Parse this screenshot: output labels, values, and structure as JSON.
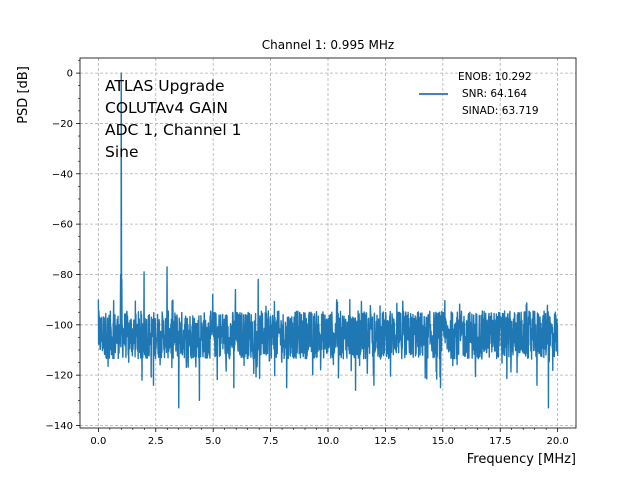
{
  "chart_data": {
    "type": "line",
    "title": "Channel 1: 0.995 MHz",
    "xlabel": "Frequency [MHz]",
    "ylabel": "PSD [dB]",
    "xlim": [
      -0.8,
      20.8
    ],
    "ylim": [
      -141,
      6
    ],
    "x_ticks": [
      0.0,
      2.5,
      5.0,
      7.5,
      10.0,
      12.5,
      15.0,
      17.5,
      20.0
    ],
    "x_tick_labels": [
      "0.0",
      "2.5",
      "5.0",
      "7.5",
      "10.0",
      "12.5",
      "15.0",
      "17.5",
      "20.0"
    ],
    "y_ticks": [
      0,
      -20,
      -40,
      -60,
      -80,
      -100,
      -120,
      -140
    ],
    "y_tick_labels": [
      "0",
      "−20",
      "−40",
      "−60",
      "−80",
      "−100",
      "−120",
      "−140"
    ],
    "grid": true,
    "legend_position": "top-right",
    "color": "#1f77b4",
    "annotation_lines": [
      "ATLAS Upgrade",
      "COLUTAv4 GAIN",
      "ADC 1, Channel 1",
      "Sine"
    ],
    "series": [
      {
        "legend_lines": [
          "ENOB: 10.292",
          "SNR: 64.164",
          "SINAD: 63.719"
        ],
        "noise_floor_db": -104,
        "noise_band_db": [
          -112,
          -93
        ],
        "min_db": -133,
        "start_db": -100,
        "spikes": [
          {
            "x": 0.0,
            "y": -90
          },
          {
            "x": 0.995,
            "y": 0
          },
          {
            "x": 0.97,
            "y": -80
          },
          {
            "x": 1.02,
            "y": -82
          },
          {
            "x": 1.99,
            "y": -79
          },
          {
            "x": 2.99,
            "y": -77
          },
          {
            "x": 4.98,
            "y": -88
          },
          {
            "x": 5.97,
            "y": -86
          },
          {
            "x": 6.96,
            "y": -82
          },
          {
            "x": 10.95,
            "y": -90
          },
          {
            "x": 19.9,
            "y": -95
          }
        ],
        "dips": [
          {
            "x": 1.9,
            "y": -122
          },
          {
            "x": 2.4,
            "y": -124
          },
          {
            "x": 3.5,
            "y": -133
          },
          {
            "x": 4.4,
            "y": -130
          },
          {
            "x": 5.9,
            "y": -125
          },
          {
            "x": 8.2,
            "y": -125
          },
          {
            "x": 11.2,
            "y": -126
          },
          {
            "x": 12.0,
            "y": -124
          },
          {
            "x": 14.9,
            "y": -125
          },
          {
            "x": 19.1,
            "y": -124
          },
          {
            "x": 19.6,
            "y": -133
          }
        ]
      }
    ]
  }
}
